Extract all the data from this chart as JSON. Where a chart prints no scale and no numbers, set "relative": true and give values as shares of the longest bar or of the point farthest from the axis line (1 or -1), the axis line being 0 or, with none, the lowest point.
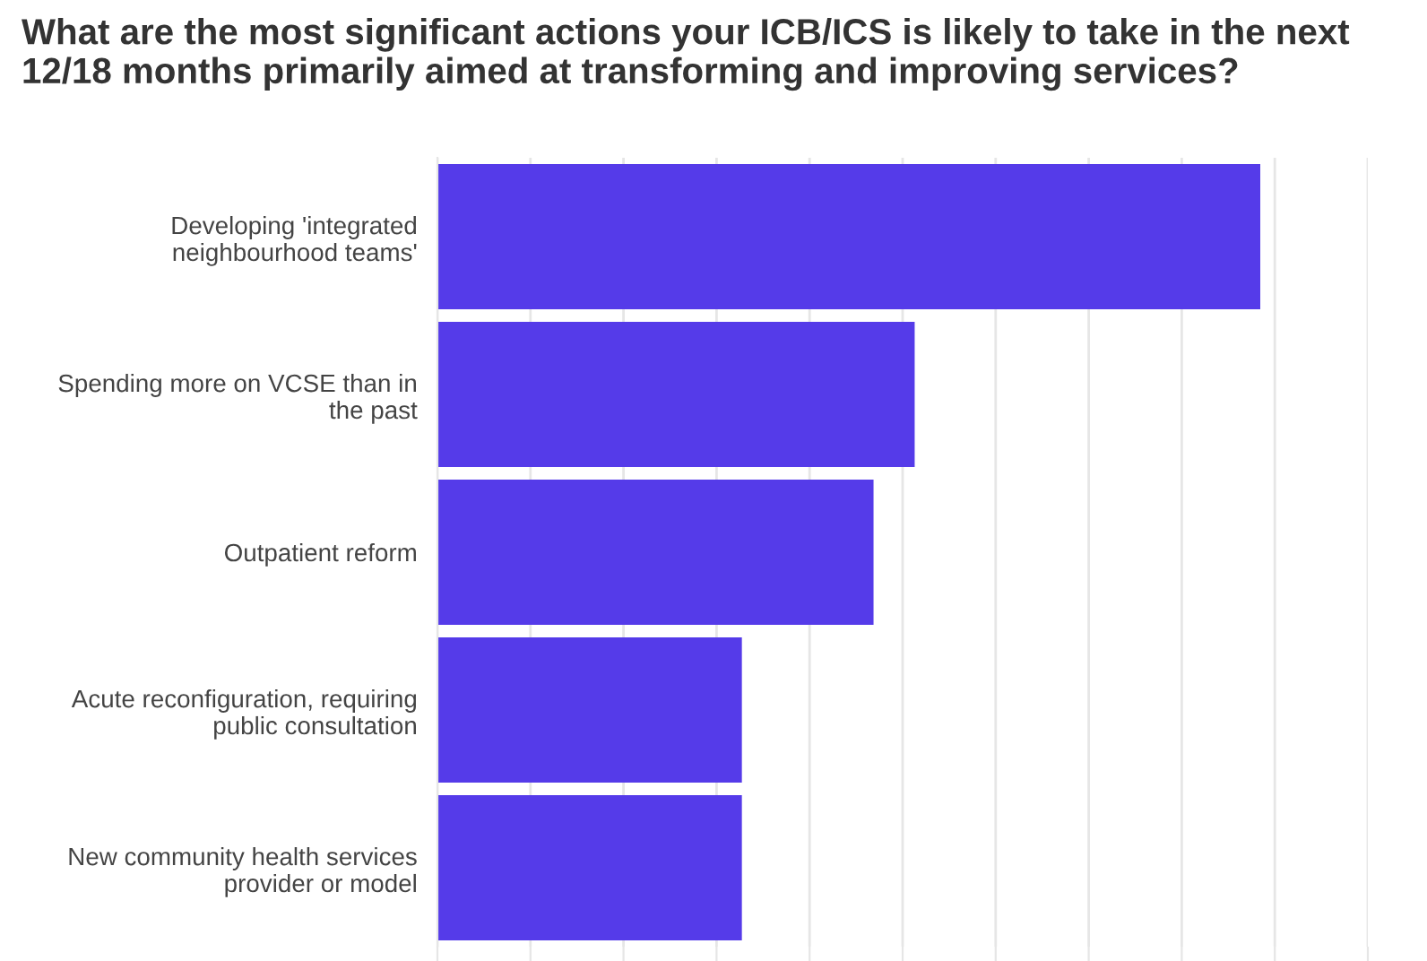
{
  "chart_data": {
    "type": "bar",
    "orientation": "horizontal",
    "relative": true,
    "title": "What are the most significant actions your ICB/ICS is likely to take in the next 12/18 months primarily aimed at transforming and improving services?",
    "categories": [
      "Developing 'integrated neighbourhood teams'",
      "Spending more on VCSE than in the past",
      "Outpatient reform",
      "Acute reconfiguration, requiring public consultation",
      "New community health services provider or model"
    ],
    "values": [
      1,
      0.58,
      0.53,
      0.37,
      0.37
    ],
    "color": "#553be9",
    "grid": "x",
    "tick_labels": "y",
    "legend": false
  }
}
